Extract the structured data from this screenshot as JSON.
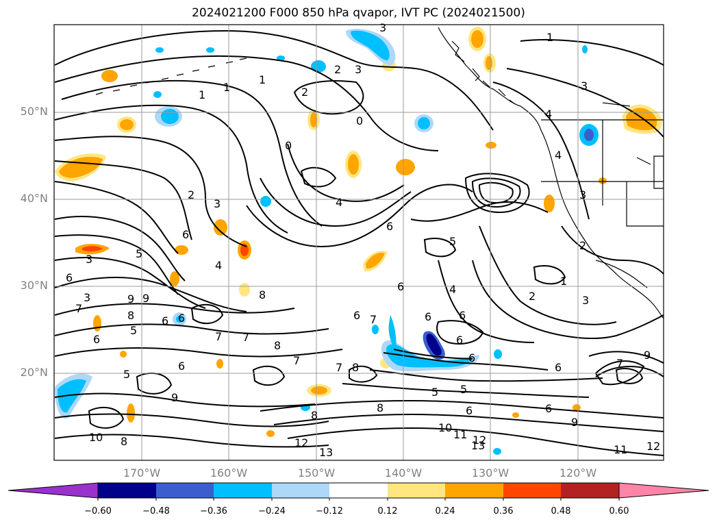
{
  "title": "2024021200 F000 850 hPa qvapor, IVT PC (2024021500)",
  "map": {
    "lat_labels": [
      "50°N",
      "40°N",
      "30°N",
      "20°N"
    ],
    "lon_labels": [
      "170°W",
      "160°W",
      "150°W",
      "140°W",
      "130°W",
      "120°W"
    ],
    "contour_labels": [
      "1",
      "1",
      "1",
      "2",
      "2",
      "3",
      "3",
      "0",
      "3",
      "2",
      "3",
      "4",
      "6",
      "6",
      "5",
      "6",
      "5",
      "4",
      "8",
      "6",
      "5",
      "3",
      "6",
      "6",
      "6",
      "4",
      "6",
      "7",
      "7",
      "8",
      "8",
      "7",
      "6",
      "5",
      "6",
      "6",
      "8",
      "6",
      "9",
      "9",
      "7",
      "8",
      "8",
      "7",
      "9",
      "7",
      "6",
      "10",
      "12",
      "13",
      "11",
      "12",
      "13",
      "10",
      "8",
      "9",
      "5",
      "5",
      "6",
      "6",
      "6",
      "7",
      "9",
      "11",
      "12",
      "2",
      "3",
      "1",
      "4",
      "0",
      "3",
      "2",
      "1",
      "4",
      "3"
    ]
  },
  "colorbar": {
    "ticks": [
      "−0.60",
      "−0.48",
      "−0.36",
      "−0.24",
      "−0.12",
      "0.12",
      "0.24",
      "0.36",
      "0.48",
      "0.60"
    ],
    "colors": {
      "under": "#9932cc",
      "bins": [
        "#00008b",
        "#3a5fcd",
        "#00bfff",
        "#add8f8",
        "#ffffff",
        "#ffe680",
        "#ffa500",
        "#ff4500",
        "#b22222"
      ],
      "over": "#ff85a8"
    }
  }
}
